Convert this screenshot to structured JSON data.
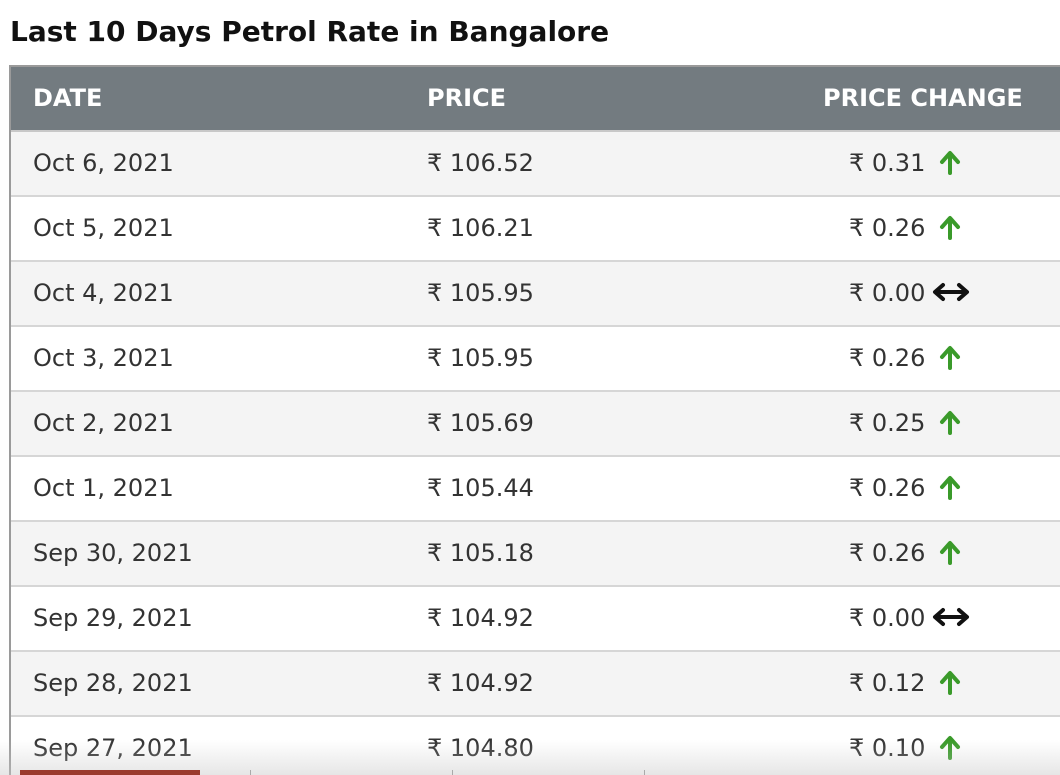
{
  "title": "Last 10 Days Petrol Rate in Bangalore",
  "table": {
    "headers": {
      "date": "DATE",
      "price": "PRICE",
      "change": "PRICE CHANGE"
    },
    "rows": [
      {
        "date": "Oct 6, 2021",
        "price": "₹ 106.52",
        "change": "₹ 0.31",
        "direction": "up"
      },
      {
        "date": "Oct 5, 2021",
        "price": "₹ 106.21",
        "change": "₹ 0.26",
        "direction": "up"
      },
      {
        "date": "Oct 4, 2021",
        "price": "₹ 105.95",
        "change": "₹ 0.00",
        "direction": "same"
      },
      {
        "date": "Oct 3, 2021",
        "price": "₹ 105.95",
        "change": "₹ 0.26",
        "direction": "up"
      },
      {
        "date": "Oct 2, 2021",
        "price": "₹ 105.69",
        "change": "₹ 0.25",
        "direction": "up"
      },
      {
        "date": "Oct 1, 2021",
        "price": "₹ 105.44",
        "change": "₹ 0.26",
        "direction": "up"
      },
      {
        "date": "Sep 30, 2021",
        "price": "₹ 105.18",
        "change": "₹ 0.26",
        "direction": "up"
      },
      {
        "date": "Sep 29, 2021",
        "price": "₹ 104.92",
        "change": "₹ 0.00",
        "direction": "same"
      },
      {
        "date": "Sep 28, 2021",
        "price": "₹ 104.92",
        "change": "₹ 0.12",
        "direction": "up"
      },
      {
        "date": "Sep 27, 2021",
        "price": "₹ 104.80",
        "change": "₹ 0.10",
        "direction": "up"
      }
    ]
  },
  "colors": {
    "header_bg": "#737b80",
    "up_arrow": "#3a9a2a",
    "same_arrow": "#111111"
  },
  "icons": {
    "up": "arrow-up-icon",
    "same": "arrow-left-right-icon"
  }
}
